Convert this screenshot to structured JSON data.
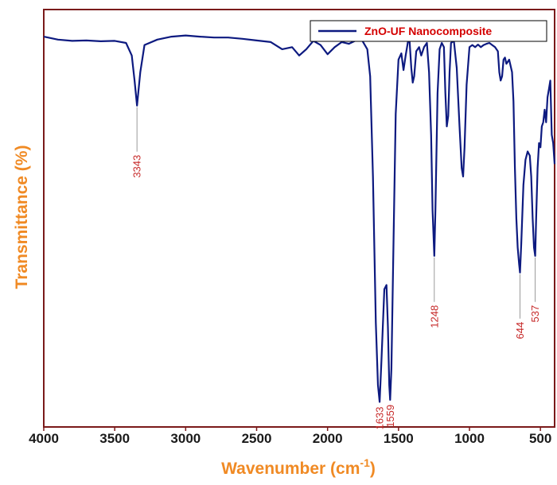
{
  "chart_data": {
    "type": "line",
    "xlabel": "Wavenumber (cm",
    "xlabel_sup": "-1",
    "xlabel_suffix": ")",
    "ylabel": "Transmittance (%)",
    "xlim": [
      4000,
      400
    ],
    "ylim": [
      0,
      100
    ],
    "x_reversed": true,
    "x_ticks": [
      4000,
      3500,
      3000,
      2500,
      2000,
      1500,
      1000,
      500
    ],
    "grid": false,
    "legend_position": "top-right",
    "series": [
      {
        "name": "ZnO-UF Nanocomposite",
        "color": "#0d1a80",
        "points": [
          [
            4000,
            93.5
          ],
          [
            3900,
            92.8
          ],
          [
            3800,
            92.5
          ],
          [
            3700,
            92.6
          ],
          [
            3600,
            92.4
          ],
          [
            3500,
            92.5
          ],
          [
            3420,
            92.0
          ],
          [
            3380,
            89.0
          ],
          [
            3360,
            83.0
          ],
          [
            3343,
            77.0
          ],
          [
            3320,
            85.0
          ],
          [
            3290,
            91.5
          ],
          [
            3200,
            92.8
          ],
          [
            3100,
            93.5
          ],
          [
            3000,
            93.8
          ],
          [
            2900,
            93.5
          ],
          [
            2800,
            93.3
          ],
          [
            2700,
            93.3
          ],
          [
            2600,
            93.0
          ],
          [
            2500,
            92.6
          ],
          [
            2400,
            92.2
          ],
          [
            2320,
            90.5
          ],
          [
            2250,
            91.0
          ],
          [
            2200,
            89.0
          ],
          [
            2150,
            90.5
          ],
          [
            2100,
            92.5
          ],
          [
            2050,
            91.5
          ],
          [
            2000,
            89.3
          ],
          [
            1950,
            91.0
          ],
          [
            1900,
            92.2
          ],
          [
            1850,
            91.8
          ],
          [
            1800,
            92.6
          ],
          [
            1760,
            92.8
          ],
          [
            1720,
            90.5
          ],
          [
            1700,
            84.0
          ],
          [
            1680,
            60.0
          ],
          [
            1660,
            25.0
          ],
          [
            1645,
            10.0
          ],
          [
            1633,
            6.0
          ],
          [
            1620,
            16.0
          ],
          [
            1600,
            33.0
          ],
          [
            1585,
            34.0
          ],
          [
            1575,
            24.0
          ],
          [
            1565,
            10.0
          ],
          [
            1559,
            6.5
          ],
          [
            1550,
            14.0
          ],
          [
            1535,
            45.0
          ],
          [
            1520,
            75.0
          ],
          [
            1500,
            88.0
          ],
          [
            1480,
            89.5
          ],
          [
            1465,
            85.5
          ],
          [
            1450,
            89.0
          ],
          [
            1425,
            94.0
          ],
          [
            1410,
            86.0
          ],
          [
            1400,
            82.5
          ],
          [
            1390,
            84.0
          ],
          [
            1375,
            90.0
          ],
          [
            1355,
            91.0
          ],
          [
            1340,
            89.0
          ],
          [
            1320,
            91.0
          ],
          [
            1300,
            92.0
          ],
          [
            1285,
            85.0
          ],
          [
            1270,
            70.0
          ],
          [
            1260,
            52.0
          ],
          [
            1248,
            41.0
          ],
          [
            1240,
            52.0
          ],
          [
            1225,
            80.0
          ],
          [
            1210,
            90.5
          ],
          [
            1195,
            92.0
          ],
          [
            1180,
            91.0
          ],
          [
            1170,
            80.0
          ],
          [
            1160,
            72.0
          ],
          [
            1150,
            74.5
          ],
          [
            1140,
            85.0
          ],
          [
            1130,
            92.0
          ],
          [
            1110,
            92.5
          ],
          [
            1090,
            86.0
          ],
          [
            1070,
            72.0
          ],
          [
            1055,
            62.0
          ],
          [
            1045,
            60.0
          ],
          [
            1035,
            67.0
          ],
          [
            1020,
            82.0
          ],
          [
            1000,
            91.0
          ],
          [
            980,
            91.5
          ],
          [
            960,
            91.0
          ],
          [
            940,
            91.6
          ],
          [
            920,
            91.0
          ],
          [
            900,
            91.5
          ],
          [
            880,
            91.8
          ],
          [
            860,
            92.0
          ],
          [
            840,
            91.5
          ],
          [
            820,
            91.0
          ],
          [
            800,
            90.0
          ],
          [
            790,
            85.0
          ],
          [
            780,
            83.0
          ],
          [
            770,
            84.0
          ],
          [
            760,
            88.0
          ],
          [
            750,
            88.5
          ],
          [
            740,
            87.0
          ],
          [
            720,
            88.0
          ],
          [
            700,
            85.0
          ],
          [
            690,
            78.0
          ],
          [
            680,
            62.0
          ],
          [
            670,
            50.0
          ],
          [
            660,
            43.0
          ],
          [
            650,
            39.0
          ],
          [
            644,
            37.0
          ],
          [
            635,
            44.0
          ],
          [
            620,
            58.0
          ],
          [
            605,
            64.0
          ],
          [
            590,
            66.0
          ],
          [
            575,
            65.0
          ],
          [
            565,
            60.0
          ],
          [
            555,
            50.0
          ],
          [
            545,
            43.0
          ],
          [
            537,
            41.0
          ],
          [
            530,
            50.0
          ],
          [
            520,
            62.0
          ],
          [
            510,
            68.0
          ],
          [
            500,
            67.0
          ],
          [
            490,
            72.0
          ],
          [
            480,
            73.0
          ],
          [
            470,
            76.0
          ],
          [
            460,
            73.0
          ],
          [
            450,
            79.0
          ],
          [
            440,
            81.0
          ],
          [
            430,
            83.0
          ],
          [
            420,
            70.0
          ],
          [
            410,
            68.0
          ],
          [
            400,
            63.0
          ]
        ]
      }
    ],
    "peak_labels": [
      {
        "wavenumber": 3343,
        "label": "3343"
      },
      {
        "wavenumber": 1633,
        "label": "1633"
      },
      {
        "wavenumber": 1559,
        "label": "1559"
      },
      {
        "wavenumber": 1248,
        "label": "1248"
      },
      {
        "wavenumber": 644,
        "label": "644"
      },
      {
        "wavenumber": 537,
        "label": "537"
      }
    ],
    "colors": {
      "frame": "#7a1a1a",
      "axis_title": "#f08a24",
      "peak_label": "#c62828",
      "legend_text": "#d40000",
      "tick_label": "#1a1a1a"
    }
  }
}
